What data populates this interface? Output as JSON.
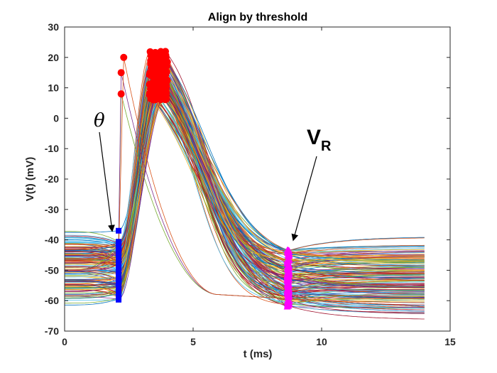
{
  "chart_data": {
    "type": "line",
    "title": "Align by threshold",
    "xlabel": "t (ms)",
    "ylabel": "V(t) (mV)",
    "xlim": [
      0,
      15
    ],
    "ylim": [
      -70,
      30
    ],
    "xticks": [
      0,
      5,
      10,
      15
    ],
    "yticks": [
      30,
      20,
      10,
      0,
      -10,
      -20,
      -30,
      -40,
      -50,
      -60,
      -70
    ],
    "grid": false,
    "trace_count_approx": 150,
    "trace_time_range_ms": [
      0,
      14
    ],
    "threshold_time_ms": 2.1,
    "threshold_range_mV": [
      -60,
      -37
    ],
    "peak_time_range_ms": [
      3.3,
      4.0
    ],
    "peak_range_mV": [
      6,
      22
    ],
    "early_peaks": [
      {
        "t": 2.2,
        "v": 8
      },
      {
        "t": 2.2,
        "v": 15
      },
      {
        "t": 2.3,
        "v": 20
      }
    ],
    "reset_time_ms": 8.7,
    "reset_range_mV": [
      -62,
      -43
    ],
    "annotations": {
      "theta_label": "θ",
      "vr_label_main": "V",
      "vr_label_sub": "R",
      "theta_arrow_target": {
        "t": 1.85,
        "v": -37
      },
      "vr_arrow_target": {
        "t": 8.9,
        "v": -40
      }
    },
    "markers": {
      "threshold": {
        "shape": "square",
        "color": "#0000ff"
      },
      "peak": {
        "shape": "circle",
        "color": "#ff0000"
      },
      "reset": {
        "shape": "triangle",
        "color": "#ff00ff"
      }
    }
  }
}
